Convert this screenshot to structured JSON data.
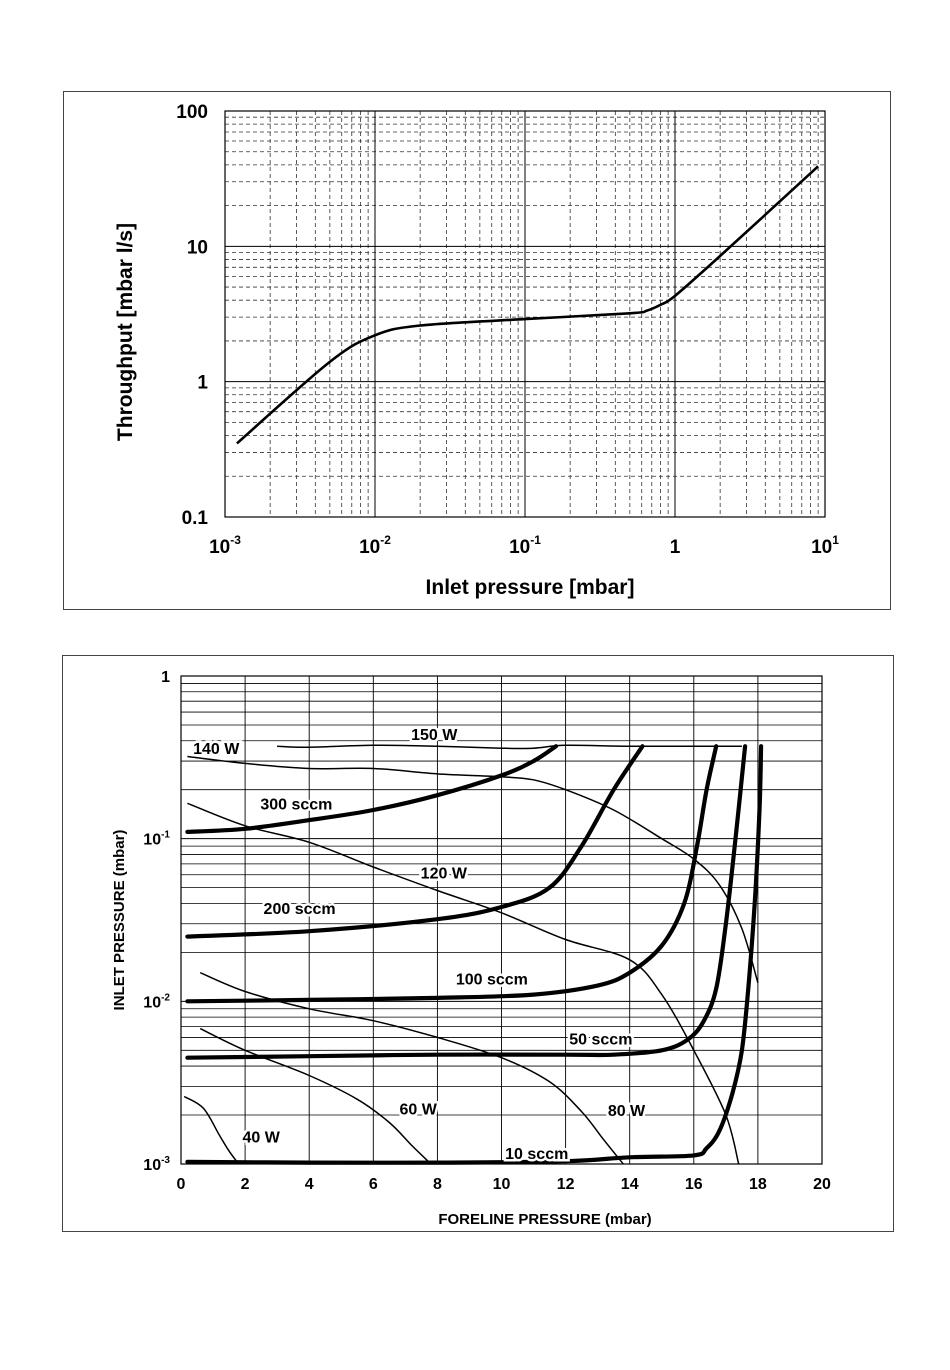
{
  "chart_data": [
    {
      "type": "line",
      "xscale": "log",
      "yscale": "log",
      "xlim": [
        0.001,
        10
      ],
      "ylim": [
        0.1,
        100
      ],
      "xlabel": "Inlet pressure [mbar]",
      "ylabel": "Throughput [mbar l/s]",
      "xticks": [
        {
          "value": 0.001,
          "base": "10",
          "exp": "-3"
        },
        {
          "value": 0.01,
          "base": "10",
          "exp": "-2"
        },
        {
          "value": 0.1,
          "base": "10",
          "exp": "-1"
        },
        {
          "value": 1,
          "base": "1",
          "exp": ""
        },
        {
          "value": 10,
          "base": "10",
          "exp": "1"
        }
      ],
      "yticks": [
        {
          "value": 0.1,
          "label": "0.1"
        },
        {
          "value": 1,
          "label": "1"
        },
        {
          "value": 10,
          "label": "10"
        },
        {
          "value": 100,
          "label": "100"
        }
      ],
      "grid": true,
      "series": [
        {
          "x": [
            0.0012,
            0.005,
            0.01,
            0.02,
            0.1,
            0.5,
            0.65,
            0.8,
            1,
            2,
            9
          ],
          "y": [
            0.35,
            1.4,
            2.2,
            2.6,
            2.9,
            3.2,
            3.35,
            3.7,
            4.3,
            8.5,
            39
          ]
        }
      ]
    },
    {
      "type": "line",
      "xscale": "linear",
      "yscale": "log",
      "xlim": [
        0,
        20
      ],
      "ylim": [
        0.001,
        1
      ],
      "xlabel": "FORELINE PRESSURE (mbar)",
      "ylabel": "INLET PRESSURE (mbar)",
      "xticks": [
        0,
        2,
        4,
        6,
        8,
        10,
        12,
        14,
        16,
        18,
        20
      ],
      "yticks": [
        {
          "value": 0.001,
          "base": "10",
          "exp": "-3"
        },
        {
          "value": 0.01,
          "base": "10",
          "exp": "-2"
        },
        {
          "value": 0.1,
          "base": "10",
          "exp": "-1"
        },
        {
          "value": 1,
          "base": "1",
          "exp": ""
        }
      ],
      "grid": true,
      "thick_series": [
        {
          "name": "300 sccm",
          "x": [
            0.2,
            2,
            4,
            6,
            8,
            10,
            11,
            11.7
          ],
          "y": [
            0.11,
            0.115,
            0.13,
            0.15,
            0.185,
            0.245,
            0.3,
            0.37
          ]
        },
        {
          "name": "200 sccm",
          "x": [
            0.2,
            4,
            8,
            10,
            11.5,
            12.5,
            13.5,
            14.4
          ],
          "y": [
            0.025,
            0.027,
            0.032,
            0.038,
            0.05,
            0.09,
            0.2,
            0.37
          ]
        },
        {
          "name": "100 sccm",
          "x": [
            0.2,
            4,
            8,
            11,
            13,
            14,
            15,
            15.7,
            16.1,
            16.4,
            16.7
          ],
          "y": [
            0.01,
            0.0102,
            0.0105,
            0.011,
            0.0125,
            0.015,
            0.022,
            0.04,
            0.09,
            0.2,
            0.37
          ]
        },
        {
          "name": "50 sccm",
          "x": [
            0.2,
            4,
            8,
            12,
            13.5,
            15,
            15.8,
            16.3,
            16.7,
            17,
            17.3,
            17.6
          ],
          "y": [
            0.0045,
            0.0046,
            0.0047,
            0.0047,
            0.0047,
            0.005,
            0.0058,
            0.0075,
            0.012,
            0.03,
            0.1,
            0.37
          ]
        },
        {
          "name": "10 sccm",
          "x": [
            0.2,
            4,
            8,
            12,
            14,
            16,
            16.4,
            16.8,
            17.2,
            17.5,
            17.7,
            17.9,
            18.05,
            18.1
          ],
          "y": [
            0.00103,
            0.00102,
            0.00102,
            0.00104,
            0.0011,
            0.00113,
            0.00125,
            0.0016,
            0.0027,
            0.005,
            0.012,
            0.04,
            0.15,
            0.37
          ]
        }
      ],
      "thin_series": [
        {
          "name": "150 W",
          "x": [
            3,
            4,
            6,
            8,
            10,
            11,
            12,
            14,
            16,
            17.5
          ],
          "y": [
            0.37,
            0.365,
            0.375,
            0.37,
            0.36,
            0.36,
            0.375,
            0.37,
            0.37,
            0.37
          ]
        },
        {
          "name": "140 W",
          "x": [
            0.2,
            2,
            4,
            6,
            8,
            10,
            11,
            12,
            13.5,
            15,
            16,
            16.8,
            17.5,
            18
          ],
          "y": [
            0.32,
            0.29,
            0.27,
            0.27,
            0.25,
            0.24,
            0.23,
            0.2,
            0.15,
            0.1,
            0.075,
            0.052,
            0.028,
            0.013
          ]
        },
        {
          "name": "120 W",
          "x": [
            0.2,
            2,
            4,
            6,
            8,
            10,
            12,
            14,
            15,
            16,
            17,
            17.4
          ],
          "y": [
            0.165,
            0.12,
            0.095,
            0.067,
            0.048,
            0.035,
            0.024,
            0.018,
            0.011,
            0.005,
            0.002,
            0.001
          ]
        },
        {
          "name": "80 W",
          "x": [
            0.6,
            2,
            4,
            6,
            8,
            10,
            11.5,
            12.5,
            13.2,
            13.8
          ],
          "y": [
            0.015,
            0.0115,
            0.009,
            0.0076,
            0.006,
            0.0045,
            0.0032,
            0.0021,
            0.0014,
            0.001
          ]
        },
        {
          "name": "60 W",
          "x": [
            0.6,
            2,
            4,
            5.5,
            6.5,
            7.2,
            7.8
          ],
          "y": [
            0.0068,
            0.005,
            0.0035,
            0.0025,
            0.0018,
            0.0013,
            0.001
          ]
        },
        {
          "name": "40 W",
          "x": [
            0.1,
            0.7,
            1.2,
            1.5,
            1.8
          ],
          "y": [
            0.0026,
            0.0022,
            0.0015,
            0.0012,
            0.001
          ]
        }
      ],
      "annotations": [
        {
          "text": "150 W",
          "x": 7.9,
          "y": 0.44
        },
        {
          "text": "140 W",
          "x": 1.1,
          "y": 0.36
        },
        {
          "text": "300 sccm",
          "x": 3.6,
          "y": 0.165
        },
        {
          "text": "120 W",
          "x": 8.2,
          "y": 0.062
        },
        {
          "text": "200 sccm",
          "x": 3.7,
          "y": 0.0375
        },
        {
          "text": "100 sccm",
          "x": 9.7,
          "y": 0.0138
        },
        {
          "text": "50 sccm",
          "x": 13.1,
          "y": 0.0059
        },
        {
          "text": "60 W",
          "x": 7.4,
          "y": 0.0022
        },
        {
          "text": "80 W",
          "x": 13.9,
          "y": 0.00215
        },
        {
          "text": "40 W",
          "x": 2.5,
          "y": 0.00148
        },
        {
          "text": "10 sccm",
          "x": 11.1,
          "y": 0.00117
        }
      ]
    }
  ]
}
